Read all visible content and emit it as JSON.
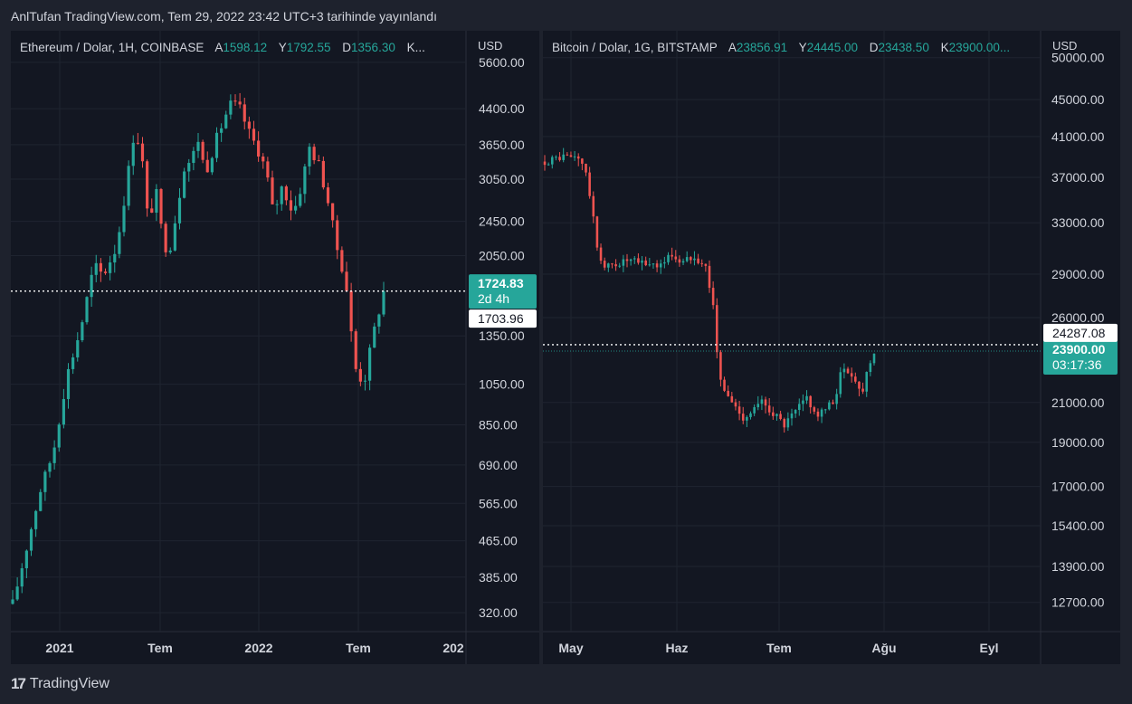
{
  "header": {
    "publish_text": "AnlTufan TradingView.com, Tem 29, 2022 23:42 UTC+3 tarihinde yayınlandı"
  },
  "footer": {
    "brand": "TradingView",
    "logo_glyph": "17"
  },
  "chart_data": [
    {
      "type": "candlestick",
      "symbol": "Ethereum / Dolar, 1H, COINBASE",
      "ohlc": [
        {
          "key": "A",
          "value": "1598.12"
        },
        {
          "key": "Y",
          "value": "1792.55"
        },
        {
          "key": "D",
          "value": "1356.30"
        },
        {
          "key": "K",
          "value": "..."
        }
      ],
      "currency": "USD",
      "scale": "log",
      "ylim": [
        290,
        6600
      ],
      "y_ticks": [
        "5600.00",
        "4400.00",
        "3650.00",
        "3050.00",
        "2450.00",
        "2050.00",
        "1350.00",
        "1050.00",
        "850.00",
        "690.00",
        "565.00",
        "465.00",
        "385.00",
        "320.00"
      ],
      "x_ticks": [
        "2021",
        "Tem",
        "2022",
        "Tem",
        "202"
      ],
      "price_label": {
        "value": "1724.83",
        "countdown": "2d 4h",
        "color": "#26a69a"
      },
      "line_label": {
        "value": "1703.96"
      },
      "path": [
        [
          0,
          335
        ],
        [
          12,
          420
        ],
        [
          30,
          600
        ],
        [
          45,
          740
        ],
        [
          60,
          1100
        ],
        [
          75,
          1400
        ],
        [
          90,
          1950
        ],
        [
          100,
          1850
        ],
        [
          115,
          2150
        ],
        [
          125,
          2900
        ],
        [
          135,
          4000
        ],
        [
          143,
          3400
        ],
        [
          150,
          2400
        ],
        [
          158,
          2900
        ],
        [
          165,
          2300
        ],
        [
          172,
          2050
        ],
        [
          180,
          2500
        ],
        [
          190,
          3300
        ],
        [
          197,
          3350
        ],
        [
          205,
          3750
        ],
        [
          213,
          3150
        ],
        [
          225,
          3750
        ],
        [
          240,
          4500
        ],
        [
          250,
          4450
        ],
        [
          262,
          3850
        ],
        [
          270,
          3600
        ],
        [
          280,
          3200
        ],
        [
          288,
          2550
        ],
        [
          298,
          2950
        ],
        [
          310,
          2550
        ],
        [
          318,
          2900
        ],
        [
          328,
          3600
        ],
        [
          338,
          3300
        ],
        [
          348,
          2750
        ],
        [
          358,
          2150
        ],
        [
          368,
          1800
        ],
        [
          378,
          1150
        ],
        [
          388,
          1050
        ],
        [
          398,
          1350
        ],
        [
          410,
          1700
        ]
      ],
      "colors": {
        "up": "#26a69a",
        "down": "#ef5350"
      }
    },
    {
      "type": "candlestick",
      "symbol": "Bitcoin / Dolar, 1G, BITSTAMP",
      "ohlc": [
        {
          "key": "A",
          "value": "23856.91"
        },
        {
          "key": "Y",
          "value": "24445.00"
        },
        {
          "key": "D",
          "value": "23438.50"
        },
        {
          "key": "K",
          "value": "23900.00..."
        }
      ],
      "currency": "USD",
      "scale": "log",
      "ylim": [
        11800,
        53500
      ],
      "y_ticks": [
        "50000.00",
        "45000.00",
        "41000.00",
        "37000.00",
        "33000.00",
        "29000.00",
        "26000.00",
        "21000.00",
        "19000.00",
        "17000.00",
        "15400.00",
        "13900.00",
        "12700.00"
      ],
      "x_ticks": [
        "May",
        "Haz",
        "Tem",
        "Ağu",
        "Eyl"
      ],
      "price_label": {
        "value": "23900.00",
        "countdown": "03:17:36",
        "color": "#26a69a"
      },
      "line_label": {
        "value": "24287.08"
      },
      "path": [
        [
          0,
          38500
        ],
        [
          20,
          39000
        ],
        [
          40,
          38800
        ],
        [
          48,
          36500
        ],
        [
          58,
          31000
        ],
        [
          66,
          29500
        ],
        [
          76,
          29700
        ],
        [
          90,
          30000
        ],
        [
          110,
          29800
        ],
        [
          128,
          29700
        ],
        [
          140,
          30500
        ],
        [
          152,
          29800
        ],
        [
          165,
          30500
        ],
        [
          178,
          29500
        ],
        [
          186,
          27000
        ],
        [
          192,
          22500
        ],
        [
          200,
          21500
        ],
        [
          210,
          20800
        ],
        [
          220,
          20200
        ],
        [
          230,
          20600
        ],
        [
          240,
          21000
        ],
        [
          252,
          20500
        ],
        [
          265,
          19800
        ],
        [
          282,
          20800
        ],
        [
          290,
          21300
        ],
        [
          300,
          20300
        ],
        [
          310,
          20600
        ],
        [
          320,
          21100
        ],
        [
          328,
          22800
        ],
        [
          340,
          22600
        ],
        [
          350,
          21400
        ],
        [
          358,
          23200
        ],
        [
          364,
          23900
        ]
      ],
      "colors": {
        "up": "#26a69a",
        "down": "#ef5350"
      }
    }
  ]
}
